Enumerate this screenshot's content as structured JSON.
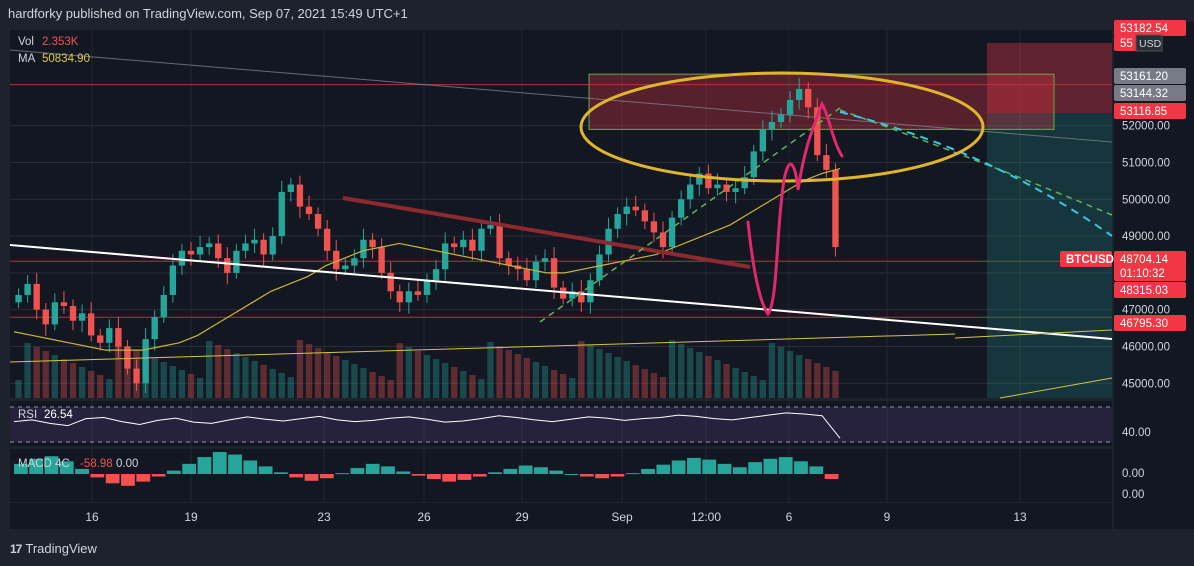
{
  "header": {
    "text": "hardforky published on TradingView.com, Sep 07, 2021 15:49 UTC+1"
  },
  "footer": {
    "logo_text": "TradingView",
    "logo_mark": "17"
  },
  "colors": {
    "background": "#131722",
    "frame": "#1e222d",
    "up_candle": "#26a69a",
    "down_candle": "#ef5350",
    "ma_line": "#c9b53a",
    "rsi_line": "#ffffff",
    "macd_up": "#26a69a",
    "macd_down": "#ef5350",
    "price_label": "#f23645",
    "highlight_oval": "#e0b52a",
    "pink_drawing": "#e0296b"
  },
  "chart_data": [
    {
      "name": "price",
      "type": "candlestick",
      "symbol": "BTCUSD",
      "currency": "USD",
      "x_ticks": [
        "16",
        "19",
        "23",
        "26",
        "29",
        "Sep",
        "12:00",
        "6",
        "9",
        "13"
      ],
      "y_ticks": [
        "52000.00",
        "51000.00",
        "50000.00",
        "49000.00",
        "48000.00",
        "47000.00",
        "46000.00",
        "45000.00"
      ],
      "y_range": [
        44600,
        54600
      ],
      "grid": true,
      "price_labels": [
        {
          "text": "53182.54",
          "style": "red"
        },
        {
          "text": "55",
          "style": "red"
        },
        {
          "text": "53161.20",
          "style": "gray"
        },
        {
          "text": "53144.32",
          "style": "gray"
        },
        {
          "text": "53116.85",
          "style": "red"
        },
        {
          "text": "BTCUSD",
          "style": "red-tag"
        },
        {
          "text": "48704.14",
          "style": "red"
        },
        {
          "text": "01:10:32",
          "style": "red"
        },
        {
          "text": "48315.03",
          "style": "red"
        },
        {
          "text": "46795.30",
          "style": "red"
        }
      ],
      "volume_legend": {
        "label": "Vol",
        "value": "2.353K"
      },
      "ma_legend": {
        "label": "MA",
        "value": "50834.90"
      },
      "close_series": [
        47400,
        47700,
        47000,
        46600,
        47200,
        47100,
        46700,
        46900,
        46300,
        46100,
        46500,
        46000,
        45400,
        45000,
        46200,
        46800,
        47400,
        48200,
        48600,
        48500,
        48700,
        48800,
        48400,
        48000,
        48600,
        48800,
        48900,
        48500,
        49000,
        50200,
        50400,
        49800,
        49600,
        49200,
        48600,
        48100,
        48200,
        48400,
        48900,
        48700,
        48000,
        47500,
        47200,
        47500,
        47400,
        47800,
        48100,
        48800,
        48700,
        48900,
        48600,
        49200,
        49300,
        48400,
        48200,
        48100,
        47800,
        48300,
        48400,
        47600,
        47300,
        47500,
        47200,
        47800,
        48500,
        49200,
        49600,
        49800,
        49700,
        49400,
        49100,
        48700,
        49500,
        50000,
        50400,
        50700,
        50300,
        50400,
        50200,
        50300,
        50600,
        51300,
        51900,
        52100,
        52300,
        52700,
        53000,
        52500,
        51200,
        50800,
        48700
      ],
      "ma_series": [
        46400,
        46300,
        46200,
        46100,
        46000,
        45900,
        45900,
        45900,
        46000,
        46100,
        46300,
        46600,
        46900,
        47200,
        47500,
        47700,
        47900,
        48200,
        48400,
        48600,
        48700,
        48800,
        48700,
        48600,
        48500,
        48400,
        48300,
        48200,
        48100,
        48000,
        48000,
        48100,
        48200,
        48300,
        48400,
        48500,
        48700,
        48900,
        49100,
        49300,
        49600,
        49900,
        50200,
        50500,
        50700,
        50834.9
      ],
      "annotations": {
        "horizontal_levels": [
          53116.85,
          48315.03,
          46795.3
        ],
        "supply_zone": [
          51900,
          53400
        ]
      }
    },
    {
      "name": "rsi",
      "type": "line",
      "label": "RSI",
      "value": "26.54",
      "y_ticks": [
        "40.00"
      ],
      "series": [
        55,
        58,
        52,
        48,
        60,
        62,
        55,
        50,
        57,
        61,
        54,
        52,
        58,
        63,
        59,
        56,
        60,
        64,
        58,
        55,
        57,
        61,
        63,
        59,
        54,
        56,
        60,
        65,
        62,
        58,
        55,
        59,
        63,
        61,
        57,
        60,
        62,
        66,
        64,
        60,
        58,
        62,
        66,
        70,
        68,
        65,
        26.54
      ]
    },
    {
      "name": "macd",
      "type": "histogram",
      "label": "MACD 4C",
      "values_text": [
        "-58.98",
        "0.00"
      ],
      "y_ticks": [
        "0.00",
        "0.00"
      ],
      "series": [
        120,
        180,
        210,
        150,
        60,
        -40,
        -110,
        -140,
        -90,
        -30,
        40,
        120,
        200,
        260,
        230,
        160,
        90,
        20,
        -40,
        -80,
        -50,
        10,
        70,
        120,
        90,
        30,
        -20,
        -60,
        -90,
        -70,
        -30,
        20,
        60,
        100,
        80,
        40,
        0,
        -30,
        -50,
        -30,
        10,
        60,
        110,
        160,
        190,
        170,
        120,
        80,
        140,
        180,
        200,
        150,
        90,
        -58.98
      ]
    }
  ]
}
